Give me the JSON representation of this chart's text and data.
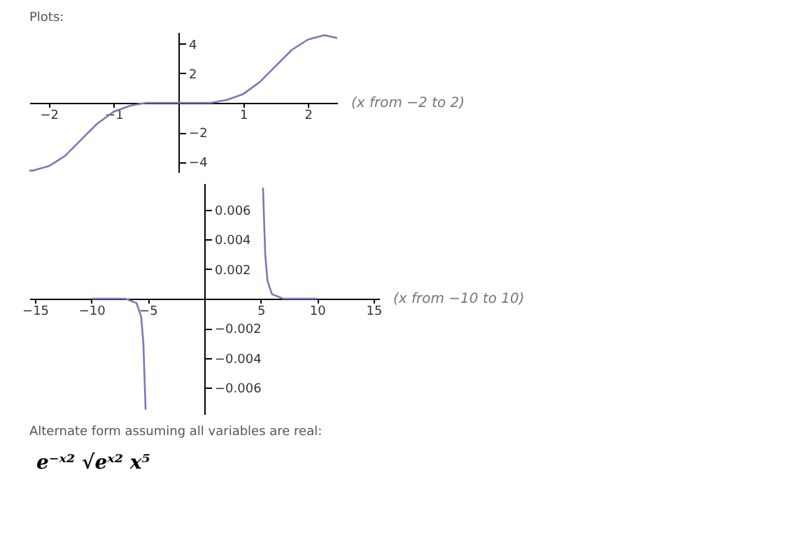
{
  "chart_data": [
    {
      "type": "line",
      "title": "Plots:",
      "annotations": [
        "(x from −2 to 2)"
      ],
      "xlim": [
        -2.3,
        2.45
      ],
      "ylim": [
        -4.7,
        4.8
      ],
      "xticks": [
        -2,
        -1,
        1,
        2
      ],
      "yticks": [
        -4,
        -2,
        2,
        4
      ],
      "grid": false,
      "series": [
        {
          "color": "#7b78b8",
          "x": [
            -2.3,
            -2.25,
            -2,
            -1.75,
            -1.5,
            -1.25,
            -1,
            -0.75,
            -0.5,
            -0.25,
            0,
            0.25,
            0.5,
            0.75,
            1,
            1.25,
            1.5,
            1.75,
            2,
            2.25,
            2.45
          ],
          "values": [
            -4.6,
            -4.6,
            -4.3,
            -3.6,
            -2.5,
            -1.4,
            -0.6,
            -0.2,
            0,
            0,
            0,
            0,
            0,
            0.2,
            0.6,
            1.4,
            2.5,
            3.6,
            4.3,
            4.6,
            4.4
          ]
        }
      ]
    },
    {
      "type": "line",
      "annotations": [
        "(x from −10 to 10)"
      ],
      "xlim": [
        -15.5,
        15.5
      ],
      "ylim": [
        -0.0078,
        0.0078
      ],
      "xticks": [
        -15,
        -10,
        -5,
        5,
        10,
        15
      ],
      "yticks": [
        -0.006,
        -0.004,
        -0.002,
        0.002,
        0.004,
        0.006
      ],
      "grid": false,
      "series": [
        {
          "color": "#7b78b8",
          "x": [
            -10,
            -7,
            -6,
            -5.6,
            -5.4,
            -5.2,
            0,
            5.2,
            5.4,
            5.6,
            6,
            7,
            10
          ],
          "values": [
            0,
            0,
            -0.0003,
            -0.0012,
            -0.003,
            -0.0075,
            null,
            0.0075,
            0.003,
            0.0012,
            0.0003,
            0,
            0
          ]
        }
      ]
    },
    {
      "type": "other",
      "title": "Alternate form assuming all variables are real:",
      "annotations": [
        "e⁻ˣ² √eˣ² x⁵"
      ]
    }
  ]
}
